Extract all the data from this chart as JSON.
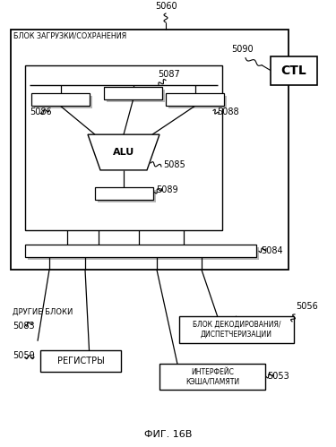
{
  "title": "ФИГ. 16В",
  "background": "#ffffff",
  "outer_box_label": "БЛОК ЗАГРУЗКИ/СОХРАНЕНИЯ",
  "num_5060": "5060",
  "ctl_label": "CTL",
  "num_5090": "5090",
  "alu_label": "ALU",
  "num_5085": "5085",
  "num_5086": "5086",
  "num_5087": "5087",
  "num_5088": "5088",
  "num_5089": "5089",
  "num_5084": "5084",
  "other_blocks_label": "ДРУГИЕ БЛОКИ",
  "num_5083": "5083",
  "registers_label": "РЕГИСТРЫ",
  "num_5059": "5059",
  "decode_label": "БЛОК ДЕКОДИРОВАНИЯ/\nДИСПЕТЧЕРИЗАЦИИ",
  "num_5056": "5056",
  "cache_label": "ИНТЕРФЕЙС\nКЭША/ПАМЯТИ",
  "num_5053": "5053"
}
